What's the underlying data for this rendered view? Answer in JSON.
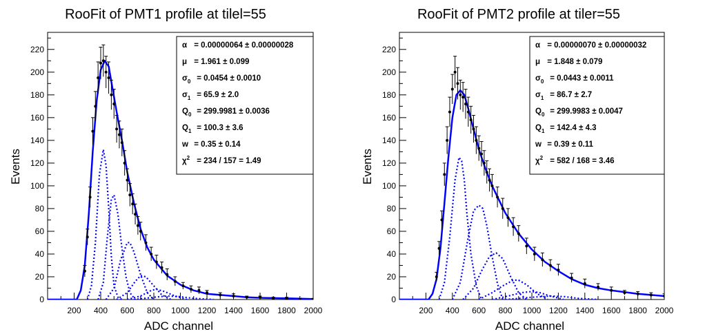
{
  "chart_data": [
    {
      "type": "line",
      "title": "RooFit of PMT1 profile at tilel=55",
      "xlabel": "ADC channel",
      "ylabel": "Events",
      "xlim": [
        0,
        2000
      ],
      "ylim": [
        0,
        235
      ],
      "x_ticks": [
        200,
        400,
        600,
        800,
        1000,
        1200,
        1400,
        1600,
        1800,
        2000
      ],
      "y_ticks": [
        0,
        20,
        40,
        60,
        80,
        100,
        120,
        140,
        160,
        180,
        200,
        220
      ],
      "x_ticks_labeled": [
        200,
        400,
        600,
        800,
        1000,
        1200,
        1400,
        1600,
        1800,
        2000
      ],
      "colors": {
        "fit": "#0000ff",
        "data": "#000000"
      },
      "fit_params": [
        {
          "sym": "α",
          "sub": "",
          "sup": "",
          "text": "=  0.00000064 ± 0.00000028"
        },
        {
          "sym": "μ",
          "sub": "",
          "sup": "",
          "text": "=  1.961 ± 0.099"
        },
        {
          "sym": "σ",
          "sub": "0",
          "sup": "",
          "text": "=  0.0454 ± 0.0010"
        },
        {
          "sym": "σ",
          "sub": "1",
          "sup": "",
          "text": "=  65.9  ± 2.0"
        },
        {
          "sym": "Q",
          "sub": "0",
          "sup": "",
          "text": "=  299.9981 ± 0.0036"
        },
        {
          "sym": "Q",
          "sub": "1",
          "sup": "",
          "text": "=  100.3  ± 3.6"
        },
        {
          "sym": "w",
          "sub": "",
          "sup": "",
          "text": "=  0.35  ± 0.14"
        },
        {
          "sym": "χ",
          "sub": "",
          "sup": "2",
          "text": "=  234 / 157 = 1.49"
        }
      ],
      "series": [
        {
          "kind": "total-fit",
          "x": [
            0,
            220,
            250,
            280,
            310,
            340,
            370,
            400,
            430,
            460,
            490,
            520,
            560,
            600,
            650,
            700,
            750,
            800,
            900,
            1000,
            1100,
            1200,
            1300,
            1400,
            1500,
            1600,
            1800,
            2000
          ],
          "y": [
            0,
            0,
            8,
            30,
            75,
            130,
            175,
            202,
            210,
            205,
            185,
            165,
            140,
            112,
            85,
            62,
            46,
            35,
            21,
            13,
            8,
            5,
            4,
            3,
            2,
            1.5,
            1,
            0.5
          ]
        },
        {
          "kind": "component",
          "x": [
            300,
            330,
            360,
            390,
            420,
            440,
            460,
            480,
            500,
            530,
            560
          ],
          "y": [
            0,
            12,
            50,
            110,
            132,
            118,
            80,
            38,
            12,
            2,
            0
          ]
        },
        {
          "kind": "component",
          "x": [
            380,
            420,
            450,
            480,
            500,
            530,
            560,
            590,
            620,
            660
          ],
          "y": [
            0,
            15,
            55,
            88,
            92,
            75,
            45,
            20,
            6,
            0
          ]
        },
        {
          "kind": "component",
          "x": [
            440,
            500,
            550,
            600,
            620,
            650,
            700,
            750,
            800
          ],
          "y": [
            0,
            10,
            35,
            50,
            50,
            42,
            22,
            6,
            0
          ]
        },
        {
          "kind": "component",
          "x": [
            520,
            600,
            660,
            700,
            740,
            800,
            860,
            930
          ],
          "y": [
            0,
            6,
            16,
            21,
            20,
            12,
            4,
            0
          ]
        },
        {
          "kind": "component",
          "x": [
            600,
            700,
            780,
            820,
            880,
            960,
            1050
          ],
          "y": [
            0,
            3,
            8,
            9,
            7,
            3,
            0
          ]
        },
        {
          "kind": "component",
          "x": [
            650,
            800,
            900,
            1000,
            1100,
            1250
          ],
          "y": [
            0,
            2,
            3,
            2.5,
            1,
            0
          ]
        },
        {
          "kind": "data",
          "x": [
            280,
            300,
            320,
            340,
            360,
            380,
            400,
            420,
            440,
            460,
            480,
            500,
            520,
            540,
            560,
            580,
            600,
            620,
            640,
            660,
            680,
            700,
            740,
            780,
            820,
            860,
            900,
            960,
            1020,
            1080,
            1140,
            1200,
            1300,
            1400,
            1500,
            1600,
            1700,
            1800,
            1900,
            2000
          ],
          "y": [
            25,
            55,
            90,
            148,
            170,
            195,
            208,
            210,
            200,
            195,
            180,
            172,
            150,
            145,
            138,
            120,
            105,
            92,
            84,
            75,
            65,
            60,
            50,
            40,
            33,
            28,
            22,
            16,
            12,
            9,
            8,
            6,
            4,
            3,
            2,
            2,
            1,
            1,
            0,
            0
          ],
          "err": [
            5,
            7,
            9,
            12,
            13,
            14,
            14,
            14,
            14,
            14,
            13,
            13,
            12,
            12,
            12,
            11,
            10,
            10,
            9,
            9,
            8,
            8,
            7,
            6,
            6,
            5,
            5,
            4,
            3,
            3,
            3,
            2,
            2,
            2,
            1,
            1,
            1,
            1,
            1,
            1
          ]
        }
      ]
    },
    {
      "type": "line",
      "title": "RooFit of PMT2 profile at tiler=55",
      "xlabel": "ADC channel",
      "ylabel": "Events",
      "xlim": [
        0,
        2000
      ],
      "ylim": [
        0,
        235
      ],
      "x_ticks": [
        200,
        400,
        600,
        800,
        1000,
        1200,
        1400,
        1600,
        1800,
        2000
      ],
      "y_ticks": [
        0,
        20,
        40,
        60,
        80,
        100,
        120,
        140,
        160,
        180,
        200,
        220
      ],
      "x_ticks_labeled": [
        200,
        400,
        600,
        800,
        1000,
        1200,
        1400,
        1600,
        1800,
        2000
      ],
      "colors": {
        "fit": "#0000ff",
        "data": "#000000"
      },
      "fit_params": [
        {
          "sym": "α",
          "sub": "",
          "sup": "",
          "text": "=  0.00000070 ± 0.00000032"
        },
        {
          "sym": "μ",
          "sub": "",
          "sup": "",
          "text": "=  1.848 ± 0.079"
        },
        {
          "sym": "σ",
          "sub": "0",
          "sup": "",
          "text": "=  0.0443 ± 0.0011"
        },
        {
          "sym": "σ",
          "sub": "1",
          "sup": "",
          "text": "=  86.7  ± 2.7"
        },
        {
          "sym": "Q",
          "sub": "0",
          "sup": "",
          "text": "=  299.9983 ± 0.0047"
        },
        {
          "sym": "Q",
          "sub": "1",
          "sup": "",
          "text": "=  142.4  ± 4.3"
        },
        {
          "sym": "w",
          "sub": "",
          "sup": "",
          "text": "=  0.39  ± 0.11"
        },
        {
          "sym": "χ",
          "sub": "",
          "sup": "2",
          "text": "=  582 / 168 = 3.46"
        }
      ],
      "series": [
        {
          "kind": "total-fit",
          "x": [
            0,
            220,
            250,
            280,
            310,
            340,
            370,
            400,
            430,
            460,
            490,
            520,
            560,
            600,
            650,
            700,
            750,
            800,
            900,
            1000,
            1100,
            1200,
            1300,
            1400,
            1500,
            1600,
            1800,
            2000
          ],
          "y": [
            0,
            0,
            5,
            18,
            45,
            85,
            125,
            160,
            180,
            184,
            180,
            168,
            150,
            132,
            115,
            100,
            88,
            76,
            58,
            44,
            33,
            25,
            18,
            13,
            10,
            8,
            5,
            3
          ]
        },
        {
          "kind": "component",
          "x": [
            300,
            340,
            380,
            420,
            450,
            470,
            490,
            510,
            540,
            580,
            620
          ],
          "y": [
            0,
            15,
            55,
            105,
            125,
            122,
            105,
            75,
            40,
            12,
            0
          ]
        },
        {
          "kind": "component",
          "x": [
            400,
            460,
            520,
            560,
            600,
            630,
            660,
            700,
            740,
            780
          ],
          "y": [
            0,
            15,
            55,
            78,
            83,
            80,
            65,
            38,
            14,
            0
          ]
        },
        {
          "kind": "component",
          "x": [
            480,
            560,
            620,
            680,
            730,
            780,
            840,
            900,
            960
          ],
          "y": [
            0,
            10,
            25,
            38,
            41,
            36,
            20,
            6,
            0
          ]
        },
        {
          "kind": "component",
          "x": [
            600,
            700,
            780,
            860,
            900,
            960,
            1040,
            1120
          ],
          "y": [
            0,
            6,
            12,
            17,
            17,
            13,
            5,
            0
          ]
        },
        {
          "kind": "component",
          "x": [
            700,
            820,
            920,
            1000,
            1060,
            1140,
            1240
          ],
          "y": [
            0,
            3,
            6,
            7,
            6,
            3,
            0
          ]
        },
        {
          "kind": "component",
          "x": [
            800,
            1000,
            1150,
            1250,
            1350,
            1500
          ],
          "y": [
            0,
            2,
            3,
            2.5,
            1,
            0
          ]
        },
        {
          "kind": "data",
          "x": [
            280,
            300,
            320,
            340,
            360,
            380,
            400,
            420,
            440,
            460,
            480,
            500,
            520,
            540,
            560,
            580,
            600,
            620,
            640,
            660,
            680,
            700,
            740,
            780,
            820,
            860,
            900,
            960,
            1020,
            1080,
            1140,
            1200,
            1300,
            1400,
            1500,
            1600,
            1700,
            1800,
            1900,
            2000
          ],
          "y": [
            20,
            45,
            70,
            110,
            140,
            165,
            185,
            200,
            190,
            180,
            178,
            172,
            165,
            158,
            150,
            140,
            133,
            128,
            120,
            112,
            105,
            100,
            90,
            80,
            72,
            64,
            58,
            47,
            40,
            35,
            30,
            26,
            19,
            14,
            11,
            8,
            6,
            5,
            4,
            3
          ],
          "err": [
            4,
            6,
            8,
            10,
            12,
            13,
            13,
            14,
            14,
            13,
            13,
            13,
            13,
            12,
            12,
            12,
            11,
            11,
            11,
            10,
            10,
            10,
            9,
            9,
            8,
            8,
            7,
            7,
            6,
            6,
            5,
            5,
            4,
            4,
            3,
            3,
            2,
            2,
            2,
            2
          ]
        }
      ]
    }
  ]
}
